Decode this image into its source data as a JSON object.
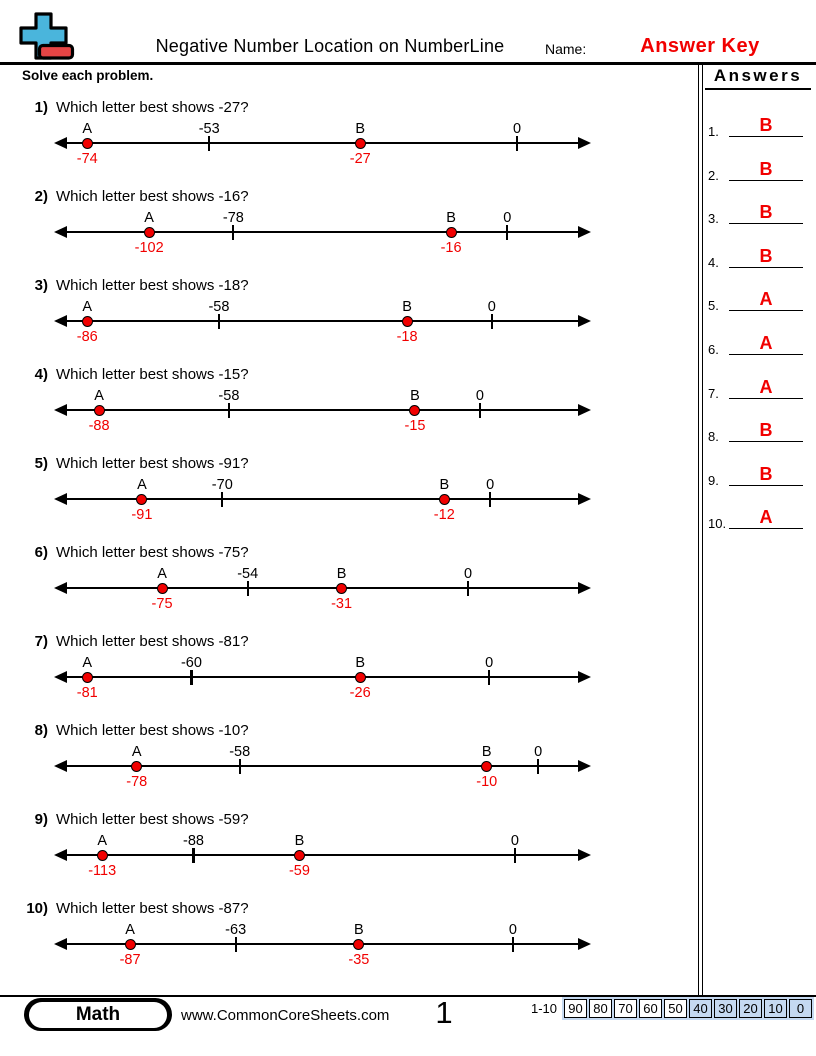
{
  "header": {
    "title": "Negative Number Location on NumberLine",
    "name_label": "Name:",
    "name_value": "Answer Key",
    "instructions": "Solve each problem."
  },
  "answers_panel": {
    "title": "Answers",
    "items": [
      {
        "num": "1.",
        "letter": "B"
      },
      {
        "num": "2.",
        "letter": "B"
      },
      {
        "num": "3.",
        "letter": "B"
      },
      {
        "num": "4.",
        "letter": "B"
      },
      {
        "num": "5.",
        "letter": "A"
      },
      {
        "num": "6.",
        "letter": "A"
      },
      {
        "num": "7.",
        "letter": "A"
      },
      {
        "num": "8.",
        "letter": "B"
      },
      {
        "num": "9.",
        "letter": "B"
      },
      {
        "num": "10.",
        "letter": "A"
      }
    ]
  },
  "problems": [
    {
      "number": "1)",
      "question": "Which letter best shows -27?",
      "answer": "B",
      "line": {
        "a_label": "A",
        "a_value": -74,
        "b_label": "B",
        "b_value": -27,
        "mid_tick_value": -53,
        "zero_label": "0",
        "a_pct": 4.5,
        "zero_pct": 87.8
      }
    },
    {
      "number": "2)",
      "question": "Which letter best shows -16?",
      "answer": "B",
      "line": {
        "a_label": "A",
        "a_value": -102,
        "b_label": "B",
        "b_value": -16,
        "mid_tick_value": -78,
        "zero_label": "0",
        "a_pct": 16.5,
        "zero_pct": 85.9
      }
    },
    {
      "number": "3)",
      "question": "Which letter best shows -18?",
      "answer": "B",
      "line": {
        "a_label": "A",
        "a_value": -86,
        "b_label": "B",
        "b_value": -18,
        "mid_tick_value": -58,
        "zero_label": "0",
        "a_pct": 4.5,
        "zero_pct": 82.9
      }
    },
    {
      "number": "4)",
      "question": "Which letter best shows -15?",
      "answer": "B",
      "line": {
        "a_label": "A",
        "a_value": -88,
        "b_label": "B",
        "b_value": -15,
        "mid_tick_value": -58,
        "zero_label": "0",
        "a_pct": 6.8,
        "zero_pct": 80.6
      }
    },
    {
      "number": "5)",
      "question": "Which letter best shows -91?",
      "answer": "A",
      "line": {
        "a_label": "A",
        "a_value": -91,
        "b_label": "B",
        "b_value": -12,
        "mid_tick_value": -70,
        "zero_label": "0",
        "a_pct": 15.1,
        "zero_pct": 82.6
      }
    },
    {
      "number": "6)",
      "question": "Which letter best shows -75?",
      "answer": "A",
      "line": {
        "a_label": "A",
        "a_value": -75,
        "b_label": "B",
        "b_value": -31,
        "mid_tick_value": -54,
        "zero_label": "0",
        "a_pct": 19.0,
        "zero_pct": 78.3
      }
    },
    {
      "number": "7)",
      "question": "Which letter best shows -81?",
      "answer": "A",
      "line": {
        "a_label": "A",
        "a_value": -81,
        "b_label": "B",
        "b_value": -26,
        "mid_tick_value": -60,
        "zero_label": "0",
        "a_pct": 4.5,
        "zero_pct": 82.4
      }
    },
    {
      "number": "8)",
      "question": "Which letter best shows -10?",
      "answer": "B",
      "line": {
        "a_label": "A",
        "a_value": -78,
        "b_label": "B",
        "b_value": -10,
        "mid_tick_value": -58,
        "zero_label": "0",
        "a_pct": 14.1,
        "zero_pct": 91.9
      }
    },
    {
      "number": "9)",
      "question": "Which letter best shows -59?",
      "answer": "B",
      "line": {
        "a_label": "A",
        "a_value": -113,
        "b_label": "B",
        "b_value": -59,
        "mid_tick_value": -88,
        "zero_label": "0",
        "a_pct": 7.4,
        "zero_pct": 87.4
      }
    },
    {
      "number": "10)",
      "question": "Which letter best shows -87?",
      "answer": "A",
      "line": {
        "a_label": "A",
        "a_value": -87,
        "b_label": "B",
        "b_value": -35,
        "mid_tick_value": -63,
        "zero_label": "0",
        "a_pct": 12.8,
        "zero_pct": 87.0
      }
    }
  ],
  "footer": {
    "badge": "Math",
    "website": "www.CommonCoreSheets.com",
    "page_number": "1",
    "score_range_label": "1-10",
    "score_cells": [
      {
        "label": "90",
        "highlighted": false
      },
      {
        "label": "80",
        "highlighted": false
      },
      {
        "label": "70",
        "highlighted": false
      },
      {
        "label": "60",
        "highlighted": false
      },
      {
        "label": "50",
        "highlighted": false
      },
      {
        "label": "40",
        "highlighted": true
      },
      {
        "label": "30",
        "highlighted": true
      },
      {
        "label": "20",
        "highlighted": true
      },
      {
        "label": "10",
        "highlighted": true
      },
      {
        "label": "0",
        "highlighted": true
      }
    ]
  },
  "colors": {
    "red": "#f10000",
    "score_highlight": "#c5d9f1",
    "logo_blue": "#4ab5dc",
    "logo_red": "#e64545"
  }
}
